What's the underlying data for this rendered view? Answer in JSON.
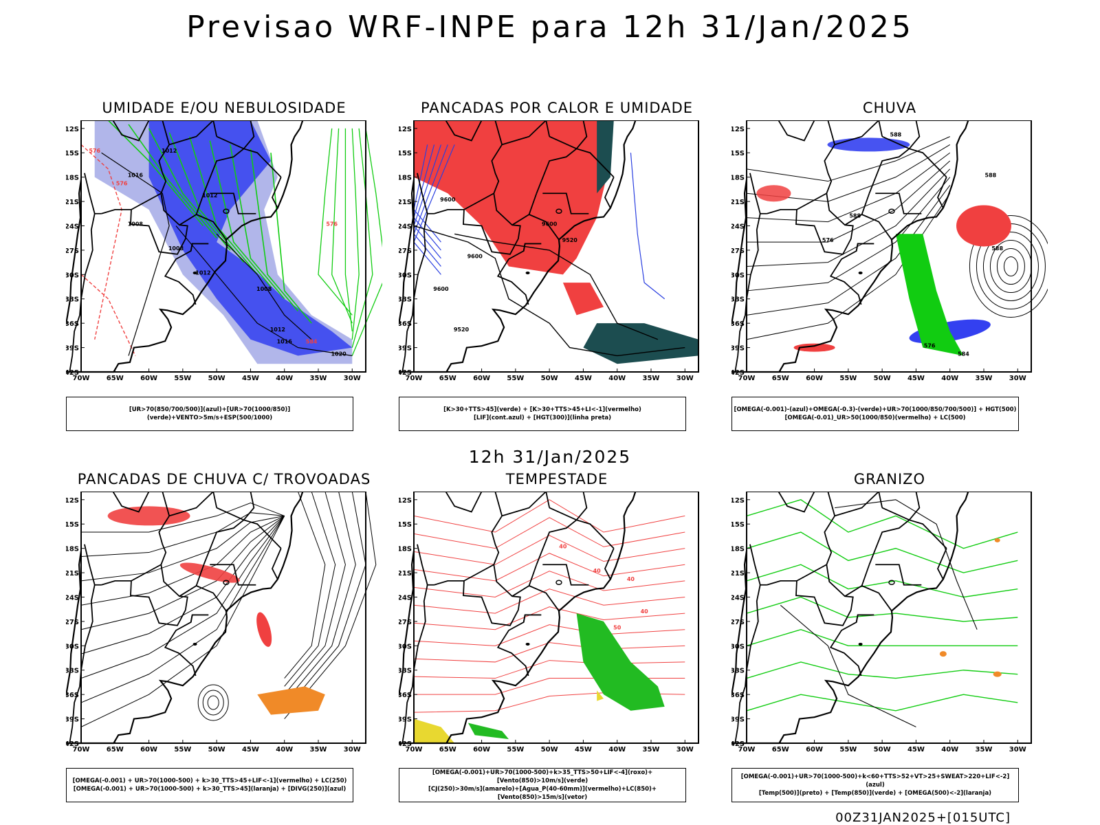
{
  "header": {
    "title": "Previsao WRF-INPE  para 12h 31/Jan/2025"
  },
  "middle_time": "12h 31/Jan/2025",
  "footer": {
    "stamp": "00Z31JAN2025+[015UTC]"
  },
  "axes": {
    "lat_labels": [
      "12S",
      "15S",
      "18S",
      "21S",
      "24S",
      "27S",
      "30S",
      "33S",
      "36S",
      "39S",
      "42S"
    ],
    "lon_labels": [
      "70W",
      "65W",
      "60W",
      "55W",
      "50W",
      "45W",
      "40W",
      "35W",
      "30W"
    ]
  },
  "panels": [
    {
      "title": "UMIDADE E/OU NEBULOSIDADE",
      "legend": [
        "[UR>70(850/700/500)](azul)+[UR>70(1000/850)](verde)+VENTO>5m/s+ESP(500/1000)"
      ],
      "contour_labels": [
        "1012",
        "1016",
        "1012",
        "1008",
        "1012",
        "1008",
        "1008",
        "1012",
        "1016",
        "1020",
        "576",
        "576",
        "576",
        "584"
      ]
    },
    {
      "title": "PANCADAS POR CALOR E UMIDADE",
      "legend": [
        "[K>30+TTS>45](verde) + [K>30+TTS>45+LI<-1](vermelho)",
        "[LIF](cont.azul) + [HGT(300)](linha preta)"
      ],
      "contour_labels": [
        "9600",
        "9600",
        "9600",
        "9600",
        "9520",
        "9520"
      ]
    },
    {
      "title": "CHUVA",
      "legend": [
        "[OMEGA(-0.001)-(azul)+OMEGA(-0.3)-(verde)+UR>70(1000/850/700/500)] + HGT(500)",
        "[OMEGA(-0.01)_UR>50(1000/850)(vermelho) + LC(500)"
      ],
      "contour_labels": [
        "588",
        "588",
        "588",
        "576",
        "588",
        "576",
        "584"
      ]
    },
    {
      "title": "PANCADAS DE CHUVA C/ TROVOADAS",
      "legend": [
        "[OMEGA(-0.001) + UR>70(1000-500) + k>30_TTS>45+LIF<-1](vermelho) + LC(250)",
        "[OMEGA(-0.001) + UR>70(1000-500) + k>30_TTS>45](laranja) + [DIVG(250)](azul)"
      ],
      "contour_labels": []
    },
    {
      "title": "TEMPESTADE",
      "legend": [
        "[OMEGA(-0.001)+UR>70(1000-500)+k>35_TTS>50+LIF<-4](roxo)+[Vento(850)>10m/s](verde)",
        "[CJ(250)>30m/s](amarelo)+[Agua_P(40-60mm)](vermelho)+LC(850)+[Vento(850)>15m/s](vetor)"
      ],
      "contour_labels": [
        "40",
        "40",
        "40",
        "50",
        "40"
      ]
    },
    {
      "title": "GRANIZO",
      "legend": [
        "[OMEGA(-0.001)+UR>70(1000-500)+k<60+TTS>52+VT>25+SWEAT>220+LIF<-2](azul)",
        "[Temp(500)](preto) + [Temp(850)](verde) + [OMEGA(500)<-2](laranja)"
      ],
      "contour_labels": []
    }
  ],
  "colors": {
    "blue_fill": "#3340f0",
    "lightblue_fill": "#a8aee8",
    "green_contour": "#11cc11",
    "red": "#f04040",
    "darkteal": "#1c4d50",
    "orange": "#f08a28",
    "yellow": "#e8d830"
  }
}
